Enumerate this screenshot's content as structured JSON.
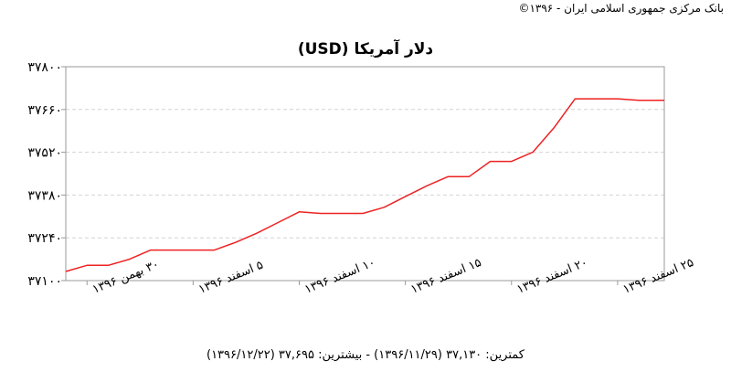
{
  "copyright": "بانک مرکزی جمهوری اسلامی ایران - ۱۳۹۶©",
  "footer": "کمترین: ۳۷,۱۳۰ (۱۳۹۶/۱۱/۲۹) - بیشترین: ۳۷,۶۹۵ (۱۳۹۶/۱۲/۲۲)",
  "chart_data": {
    "type": "line",
    "title": "دلار آمریکا (USD)",
    "xlabel": "",
    "ylabel": "",
    "grid": true,
    "ylim": [
      37100,
      37800
    ],
    "yticks": [
      37100,
      37240,
      37380,
      37520,
      37660,
      37800
    ],
    "ytick_labels": [
      "۳۷۱۰۰",
      "۳۷۲۴۰",
      "۳۷۳۸۰",
      "۳۷۵۲۰",
      "۳۷۶۶۰",
      "۳۷۸۰۰"
    ],
    "xlim": [
      29,
      57.2
    ],
    "xticks": [
      30,
      35,
      40,
      45,
      50,
      55
    ],
    "xtick_labels": [
      "۳۰ بهمن ۱۳۹۶",
      "۵ اسفند ۱۳۹۶",
      "۱۰ اسفند ۱۳۹۶",
      "۱۵ اسفند ۱۳۹۶",
      "۲۰ اسفند ۱۳۹۶",
      "۲۵ اسفند ۱۳۹۶"
    ],
    "series": [
      {
        "color": "#ee2222",
        "x": [
          29,
          30,
          31,
          32,
          33,
          34,
          35,
          36,
          37,
          38,
          39,
          40,
          41,
          42,
          43,
          44,
          45,
          46,
          47,
          48,
          49,
          50,
          51,
          52,
          53,
          54,
          55,
          56,
          57.2
        ],
        "y": [
          37130,
          37150,
          37150,
          37170,
          37200,
          37200,
          37200,
          37200,
          37225,
          37255,
          37290,
          37325,
          37320,
          37320,
          37320,
          37340,
          37375,
          37410,
          37440,
          37440,
          37490,
          37490,
          37520,
          37600,
          37695,
          37695,
          37695,
          37690,
          37690
        ]
      }
    ]
  }
}
